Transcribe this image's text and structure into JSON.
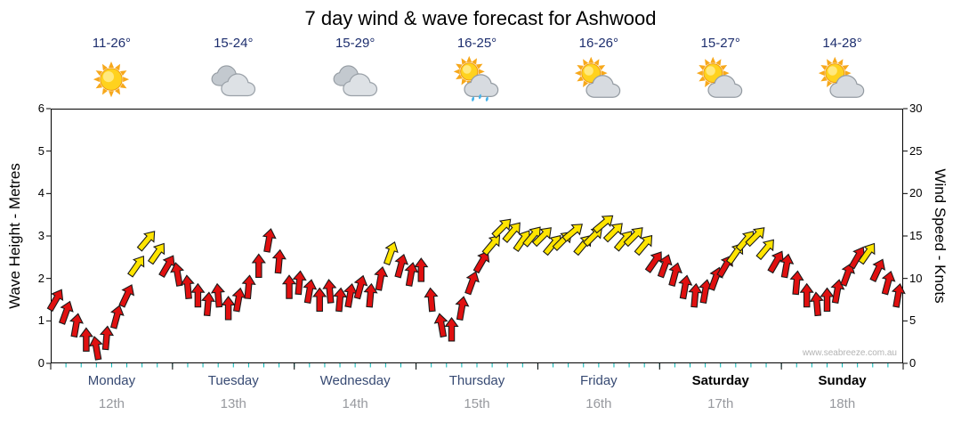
{
  "title": "7 day wind & wave forecast for Ashwood",
  "watermark": "www.seabreeze.com.au",
  "axes": {
    "left_title": "Wave Height - Metres",
    "right_title": "Wind Speed - Knots",
    "left_ticks": [
      0,
      1,
      2,
      3,
      4,
      5,
      6
    ],
    "right_ticks": [
      0,
      5,
      10,
      15,
      20,
      25,
      30
    ]
  },
  "days": [
    {
      "name": "Monday",
      "date": "12th",
      "temp": "11-26°",
      "icon": "sunny",
      "weekend": false
    },
    {
      "name": "Tuesday",
      "date": "13th",
      "temp": "15-24°",
      "icon": "cloudy",
      "weekend": false
    },
    {
      "name": "Wednesday",
      "date": "14th",
      "temp": "15-29°",
      "icon": "cloudy",
      "weekend": false
    },
    {
      "name": "Thursday",
      "date": "15th",
      "temp": "16-25°",
      "icon": "showers",
      "weekend": false
    },
    {
      "name": "Friday",
      "date": "16th",
      "temp": "16-26°",
      "icon": "partly-cloudy",
      "weekend": false
    },
    {
      "name": "Saturday",
      "date": "17th",
      "temp": "15-27°",
      "icon": "partly-cloudy",
      "weekend": true
    },
    {
      "name": "Sunday",
      "date": "18th",
      "temp": "14-28°",
      "icon": "partly-cloudy",
      "weekend": true
    }
  ],
  "chart_data": {
    "type": "scatter",
    "subtype": "wind-direction-arrows",
    "title": "7 day wind & wave forecast for Ashwood",
    "categories": [
      "Monday 12th",
      "Tuesday 13th",
      "Wednesday 14th",
      "Thursday 15th",
      "Friday 16th",
      "Saturday 17th",
      "Sunday 18th"
    ],
    "samples_per_day": 12,
    "y_axis_left": {
      "label": "Wave Height - Metres",
      "range": [
        0,
        6
      ]
    },
    "y_axis_right": {
      "label": "Wind Speed - Knots",
      "range": [
        0,
        30
      ]
    },
    "colors": {
      "r": "#e01010",
      "y": "#ffe400"
    },
    "series": [
      {
        "name": "Wind speed (knots)",
        "values": [
          7.5,
          6,
          4.5,
          2.8,
          1.8,
          3,
          5.5,
          8,
          11.5,
          14.5,
          13,
          11.5,
          10.5,
          9,
          8,
          7,
          8,
          6.5,
          7.5,
          9,
          11.5,
          14.5,
          12,
          9,
          9.5,
          8.5,
          7.5,
          8.5,
          7.5,
          8,
          9,
          8,
          10,
          13,
          11.5,
          10.5,
          11,
          7.5,
          4.5,
          4,
          6.5,
          9.5,
          12,
          14,
          16,
          15.5,
          14.5,
          15,
          15,
          14,
          14.5,
          15.5,
          14,
          15,
          16.5,
          15.5,
          14.5,
          15,
          14,
          12,
          11.5,
          10.5,
          9,
          8,
          8.5,
          10,
          11.5,
          13,
          14.5,
          15,
          13.5,
          12,
          11.5,
          9.5,
          8,
          7,
          7.5,
          8.5,
          10.5,
          12.5,
          13,
          11,
          9.5,
          8
        ]
      },
      {
        "name": "Wind direction (degrees, 0 = up)",
        "values": [
          30,
          20,
          10,
          0,
          -10,
          5,
          15,
          25,
          35,
          40,
          35,
          30,
          -10,
          -5,
          0,
          5,
          -5,
          0,
          10,
          5,
          0,
          10,
          5,
          0,
          5,
          10,
          0,
          -5,
          5,
          10,
          15,
          5,
          10,
          20,
          15,
          10,
          0,
          -5,
          -10,
          0,
          10,
          20,
          30,
          40,
          45,
          40,
          35,
          40,
          45,
          40,
          45,
          50,
          40,
          45,
          50,
          45,
          40,
          45,
          40,
          35,
          20,
          15,
          10,
          5,
          10,
          20,
          30,
          35,
          40,
          45,
          40,
          30,
          10,
          5,
          0,
          -5,
          0,
          10,
          20,
          30,
          35,
          25,
          15,
          10
        ]
      },
      {
        "name": "Arrow colour key",
        "values": [
          "r",
          "r",
          "r",
          "r",
          "r",
          "r",
          "r",
          "r",
          "y",
          "y",
          "y",
          "r",
          "r",
          "r",
          "r",
          "r",
          "r",
          "r",
          "r",
          "r",
          "r",
          "r",
          "r",
          "r",
          "r",
          "r",
          "r",
          "r",
          "r",
          "r",
          "r",
          "r",
          "r",
          "y",
          "r",
          "r",
          "r",
          "r",
          "r",
          "r",
          "r",
          "r",
          "r",
          "y",
          "y",
          "y",
          "y",
          "y",
          "y",
          "y",
          "y",
          "y",
          "y",
          "y",
          "y",
          "y",
          "y",
          "y",
          "y",
          "r",
          "r",
          "r",
          "r",
          "r",
          "r",
          "r",
          "r",
          "y",
          "y",
          "y",
          "y",
          "r",
          "r",
          "r",
          "r",
          "r",
          "r",
          "r",
          "r",
          "r",
          "y",
          "r",
          "r",
          "r"
        ]
      }
    ]
  }
}
